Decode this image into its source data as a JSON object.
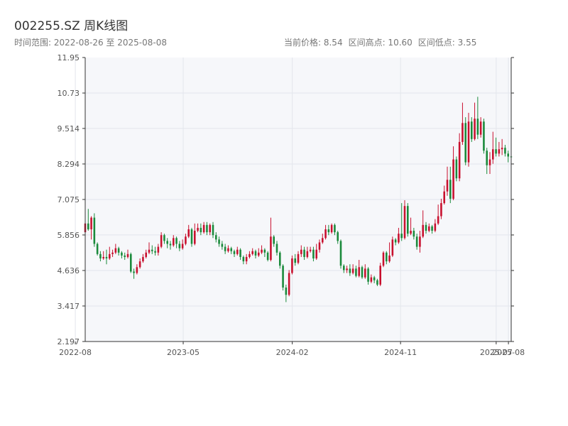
{
  "title": "002255.SZ 周K线图",
  "subtitle": "时间范围: 2022-08-26 至 2025-08-08",
  "stats": {
    "current": "当前价格: 8.54",
    "high": "区间高点: 10.60",
    "low": "区间低点: 3.55"
  },
  "colors": {
    "up": "#c8102e",
    "down": "#1a8a3b",
    "plot_bg": "#f6f7fa",
    "grid": "#e3e6ec"
  },
  "chart_data": {
    "type": "candlestick",
    "title": "002255.SZ 周K线图",
    "x_range": [
      "2022-08-26",
      "2025-08-08"
    ],
    "ylim": [
      2.197,
      11.95
    ],
    "y_ticks": [
      "11.95",
      "10.73",
      "9.514",
      "8.294",
      "7.075",
      "5.856",
      "4.636",
      "3.417",
      "2.197"
    ],
    "x_ticks": [
      "2022-08",
      "2023-05",
      "2024-02",
      "2024-11",
      "2025-07",
      "2025-08"
    ],
    "grid": true,
    "candles": [
      [
        5.95,
        6.25,
        6.35,
        5.85
      ],
      [
        6.25,
        6.05,
        6.75,
        6.0
      ],
      [
        6.05,
        6.45,
        6.5,
        5.7
      ],
      [
        6.45,
        5.55,
        6.6,
        5.45
      ],
      [
        5.55,
        5.2,
        5.6,
        5.15
      ],
      [
        5.2,
        5.05,
        5.3,
        4.95
      ],
      [
        5.05,
        5.1,
        5.3,
        5.0
      ],
      [
        5.1,
        5.05,
        5.35,
        4.85
      ],
      [
        5.05,
        5.2,
        5.45,
        5.0
      ],
      [
        5.2,
        5.25,
        5.35,
        5.1
      ],
      [
        5.25,
        5.4,
        5.55,
        5.2
      ],
      [
        5.4,
        5.25,
        5.45,
        5.15
      ],
      [
        5.25,
        5.15,
        5.3,
        5.05
      ],
      [
        5.15,
        5.1,
        5.25,
        5.0
      ],
      [
        5.1,
        5.2,
        5.35,
        5.05
      ],
      [
        5.2,
        4.6,
        5.25,
        4.55
      ],
      [
        4.6,
        4.55,
        4.7,
        4.35
      ],
      [
        4.55,
        4.75,
        4.85,
        4.5
      ],
      [
        4.75,
        4.95,
        5.05,
        4.7
      ],
      [
        4.95,
        5.1,
        5.2,
        4.9
      ],
      [
        5.1,
        5.25,
        5.35,
        5.05
      ],
      [
        5.25,
        5.35,
        5.6,
        5.2
      ],
      [
        5.35,
        5.3,
        5.5,
        5.2
      ],
      [
        5.3,
        5.25,
        5.45,
        5.15
      ],
      [
        5.25,
        5.45,
        5.55,
        5.15
      ],
      [
        5.45,
        5.85,
        5.95,
        5.4
      ],
      [
        5.85,
        5.65,
        5.9,
        5.55
      ],
      [
        5.65,
        5.55,
        5.75,
        5.4
      ],
      [
        5.55,
        5.5,
        5.65,
        5.35
      ],
      [
        5.5,
        5.75,
        5.85,
        5.45
      ],
      [
        5.75,
        5.55,
        5.8,
        5.4
      ],
      [
        5.55,
        5.4,
        5.65,
        5.3
      ],
      [
        5.4,
        5.55,
        5.7,
        5.35
      ],
      [
        5.55,
        5.8,
        5.9,
        5.5
      ],
      [
        5.8,
        6.05,
        6.2,
        5.75
      ],
      [
        6.05,
        5.55,
        6.1,
        5.45
      ],
      [
        5.55,
        6.0,
        6.25,
        5.5
      ],
      [
        6.0,
        6.1,
        6.25,
        5.95
      ],
      [
        6.1,
        5.95,
        6.25,
        5.85
      ],
      [
        5.95,
        6.2,
        6.3,
        5.9
      ],
      [
        6.2,
        5.95,
        6.3,
        5.85
      ],
      [
        5.95,
        6.2,
        6.25,
        5.85
      ],
      [
        6.2,
        5.85,
        6.3,
        5.75
      ],
      [
        5.85,
        5.7,
        5.95,
        5.6
      ],
      [
        5.7,
        5.55,
        5.8,
        5.45
      ],
      [
        5.55,
        5.45,
        5.65,
        5.35
      ],
      [
        5.45,
        5.3,
        5.55,
        5.2
      ],
      [
        5.3,
        5.4,
        5.5,
        5.25
      ],
      [
        5.4,
        5.3,
        5.45,
        5.2
      ],
      [
        5.3,
        5.2,
        5.35,
        5.1
      ],
      [
        5.2,
        5.35,
        5.45,
        5.15
      ],
      [
        5.35,
        5.1,
        5.4,
        5.0
      ],
      [
        5.1,
        4.95,
        5.15,
        4.85
      ],
      [
        4.95,
        5.1,
        5.2,
        4.85
      ],
      [
        5.1,
        5.2,
        5.3,
        5.05
      ],
      [
        5.2,
        5.3,
        5.4,
        5.15
      ],
      [
        5.3,
        5.15,
        5.35,
        5.05
      ],
      [
        5.15,
        5.25,
        5.4,
        5.1
      ],
      [
        5.25,
        5.35,
        5.5,
        5.2
      ],
      [
        5.35,
        5.25,
        5.4,
        5.1
      ],
      [
        5.25,
        5.0,
        5.3,
        4.95
      ],
      [
        5.0,
        5.8,
        6.45,
        4.95
      ],
      [
        5.8,
        5.55,
        5.85,
        5.45
      ],
      [
        5.55,
        5.25,
        5.65,
        5.15
      ],
      [
        5.25,
        4.8,
        5.3,
        4.7
      ],
      [
        4.8,
        4.05,
        4.85,
        3.95
      ],
      [
        4.05,
        3.8,
        4.15,
        3.55
      ],
      [
        3.8,
        4.55,
        4.65,
        3.75
      ],
      [
        4.55,
        5.05,
        5.15,
        4.5
      ],
      [
        5.05,
        4.9,
        5.2,
        4.8
      ],
      [
        4.9,
        5.2,
        5.3,
        4.85
      ],
      [
        5.2,
        5.35,
        5.5,
        5.1
      ],
      [
        5.35,
        5.1,
        5.45,
        5.0
      ],
      [
        5.1,
        5.3,
        5.45,
        5.05
      ],
      [
        5.3,
        5.35,
        5.45,
        5.25
      ],
      [
        5.35,
        5.05,
        5.45,
        4.95
      ],
      [
        5.05,
        5.35,
        5.55,
        5.0
      ],
      [
        5.35,
        5.6,
        5.7,
        5.25
      ],
      [
        5.6,
        5.75,
        5.9,
        5.55
      ],
      [
        5.75,
        6.05,
        6.2,
        5.7
      ],
      [
        6.05,
        5.95,
        6.2,
        5.85
      ],
      [
        5.95,
        6.2,
        6.25,
        5.9
      ],
      [
        6.2,
        5.95,
        6.25,
        5.85
      ],
      [
        5.95,
        5.65,
        6.0,
        5.55
      ],
      [
        5.65,
        4.8,
        5.7,
        4.7
      ],
      [
        4.8,
        4.65,
        4.85,
        4.55
      ],
      [
        4.65,
        4.7,
        4.8,
        4.55
      ],
      [
        4.7,
        4.55,
        4.85,
        4.45
      ],
      [
        4.55,
        4.7,
        4.85,
        4.5
      ],
      [
        4.7,
        4.45,
        4.8,
        4.4
      ],
      [
        4.45,
        4.75,
        5.0,
        4.4
      ],
      [
        4.75,
        4.4,
        4.8,
        4.35
      ],
      [
        4.4,
        4.7,
        4.85,
        4.35
      ],
      [
        4.7,
        4.25,
        4.75,
        4.15
      ],
      [
        4.25,
        4.4,
        4.5,
        4.2
      ],
      [
        4.4,
        4.3,
        4.45,
        4.2
      ],
      [
        4.3,
        4.15,
        4.35,
        4.1
      ],
      [
        4.15,
        4.8,
        4.9,
        4.1
      ],
      [
        4.8,
        5.25,
        5.3,
        4.75
      ],
      [
        5.25,
        4.95,
        5.3,
        4.85
      ],
      [
        4.95,
        5.15,
        5.6,
        4.9
      ],
      [
        5.15,
        5.7,
        5.8,
        5.1
      ],
      [
        5.7,
        5.6,
        5.75,
        5.5
      ],
      [
        5.6,
        5.9,
        6.1,
        5.55
      ],
      [
        5.9,
        5.75,
        6.95,
        5.65
      ],
      [
        5.75,
        6.85,
        7.05,
        5.7
      ],
      [
        6.85,
        5.9,
        6.95,
        5.8
      ],
      [
        5.9,
        6.0,
        6.45,
        5.85
      ],
      [
        6.0,
        5.8,
        6.1,
        5.7
      ],
      [
        5.8,
        5.45,
        5.9,
        5.35
      ],
      [
        5.45,
        5.8,
        6.0,
        5.25
      ],
      [
        5.8,
        6.2,
        6.7,
        5.75
      ],
      [
        6.2,
        6.0,
        6.3,
        5.9
      ],
      [
        6.0,
        6.15,
        6.25,
        5.95
      ],
      [
        6.15,
        6.0,
        6.2,
        5.9
      ],
      [
        6.0,
        6.25,
        6.4,
        5.95
      ],
      [
        6.25,
        6.5,
        6.9,
        6.2
      ],
      [
        6.5,
        6.95,
        7.1,
        6.4
      ],
      [
        6.95,
        7.35,
        7.55,
        6.9
      ],
      [
        7.35,
        7.75,
        8.2,
        7.2
      ],
      [
        7.75,
        7.1,
        8.2,
        6.95
      ],
      [
        7.1,
        8.45,
        8.9,
        7.05
      ],
      [
        8.45,
        7.8,
        8.55,
        7.7
      ],
      [
        7.8,
        9.05,
        9.35,
        7.7
      ],
      [
        9.05,
        9.7,
        10.4,
        8.95
      ],
      [
        9.7,
        8.35,
        9.9,
        8.25
      ],
      [
        8.35,
        9.75,
        10.05,
        8.2
      ],
      [
        9.75,
        9.15,
        9.9,
        9.05
      ],
      [
        9.15,
        9.85,
        10.4,
        9.1
      ],
      [
        9.85,
        9.3,
        10.6,
        9.15
      ],
      [
        9.3,
        9.75,
        9.9,
        9.2
      ],
      [
        9.75,
        8.75,
        9.85,
        8.65
      ],
      [
        8.75,
        8.25,
        8.85,
        7.95
      ],
      [
        8.25,
        8.45,
        8.7,
        7.95
      ],
      [
        8.45,
        8.8,
        9.4,
        8.3
      ],
      [
        8.8,
        8.65,
        9.2,
        8.55
      ],
      [
        8.65,
        8.8,
        9.05,
        8.55
      ],
      [
        8.8,
        8.85,
        9.15,
        8.6
      ],
      [
        8.85,
        8.65,
        8.95,
        8.55
      ],
      [
        8.65,
        8.55,
        8.75,
        8.35
      ],
      [
        8.55,
        8.54,
        8.7,
        8.45
      ]
    ]
  }
}
